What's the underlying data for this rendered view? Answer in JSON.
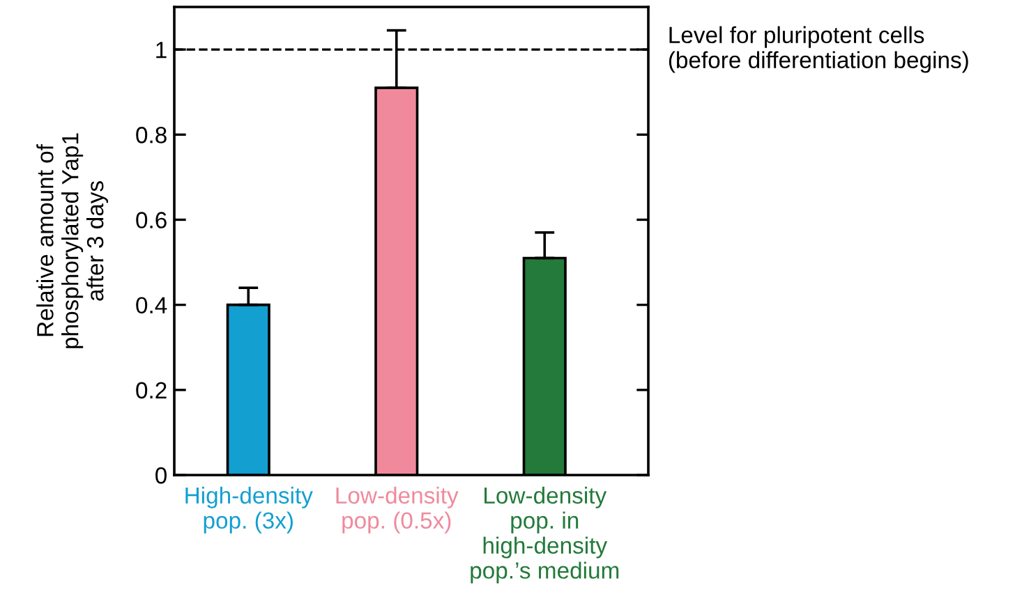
{
  "chart_data": {
    "type": "bar",
    "ylabel": "Relative amount of\nphosphorylated Yap1\nafter 3 days",
    "categories": [
      "High-density\npop. (3x)",
      "Low-density\npop. (0.5x)",
      "Low-density\npop. in\nhigh-density\npop.’s medium"
    ],
    "values": [
      0.4,
      0.91,
      0.51
    ],
    "errors": [
      [
        0.4,
        0.44
      ],
      [
        0.91,
        1.045
      ],
      [
        0.51,
        0.57
      ]
    ],
    "colors": [
      "#139fd0",
      "#f0899c",
      "#237a3a"
    ],
    "ylim": [
      0,
      1.1
    ],
    "yticks": [
      0,
      0.2,
      0.4,
      0.6,
      0.8,
      1
    ],
    "ref_lines": [
      {
        "axis": "y",
        "value": 1,
        "label": "Level for pluripotent cells\n(before differentiation begins)",
        "color": "#000000",
        "line_style": "dashed"
      }
    ],
    "grid": false,
    "legend": false
  }
}
